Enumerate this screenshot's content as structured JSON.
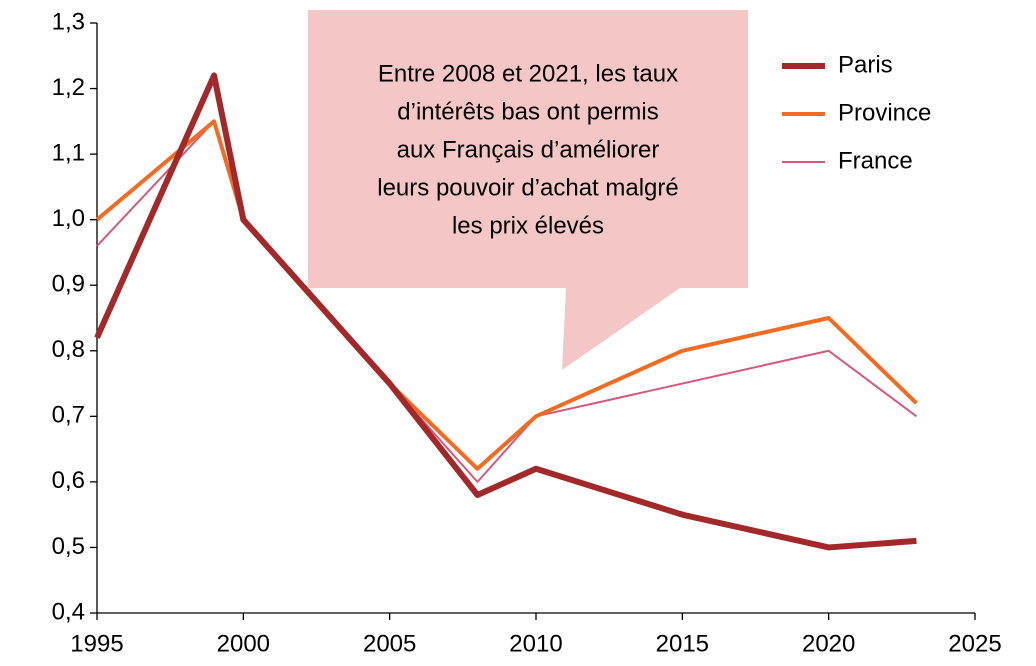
{
  "chart_data": {
    "type": "line",
    "x": [
      1995,
      1999,
      2000,
      2005,
      2008,
      2010,
      2015,
      2020,
      2023
    ],
    "series": [
      {
        "name": "Paris",
        "color": "#a3282a",
        "width": 6,
        "values": [
          0.82,
          1.22,
          1.0,
          0.75,
          0.58,
          0.62,
          0.55,
          0.5,
          0.51
        ]
      },
      {
        "name": "Province",
        "color": "#f26b21",
        "width": 4,
        "values": [
          1.0,
          1.15,
          1.0,
          0.75,
          0.62,
          0.7,
          0.8,
          0.85,
          0.72
        ]
      },
      {
        "name": "France",
        "color": "#d6587a",
        "width": 2,
        "values": [
          0.96,
          1.15,
          1.0,
          0.75,
          0.6,
          0.7,
          0.75,
          0.8,
          0.7
        ]
      }
    ],
    "xlim": [
      1995,
      2025
    ],
    "xticks": [
      1995,
      2000,
      2005,
      2010,
      2015,
      2020,
      2025
    ],
    "ylim": [
      0.4,
      1.3
    ],
    "yticks": [
      {
        "value": 0.4,
        "label": "0,4"
      },
      {
        "value": 0.5,
        "label": "0,5"
      },
      {
        "value": 0.6,
        "label": "0,6"
      },
      {
        "value": 0.7,
        "label": "0,7"
      },
      {
        "value": 0.8,
        "label": "0,8"
      },
      {
        "value": 0.9,
        "label": "0,9"
      },
      {
        "value": 1.0,
        "label": "1,0"
      },
      {
        "value": 1.1,
        "label": "1,1"
      },
      {
        "value": 1.2,
        "label": "1,2"
      },
      {
        "value": 1.3,
        "label": "1,3"
      }
    ],
    "grid": false,
    "legend": "upper right",
    "annotation": [
      "Entre 2008 et 2021, les taux",
      "d’intérêts bas ont permis",
      "aux Français d’améliorer",
      "leurs pouvoir d’achat malgré",
      "les prix élevés"
    ]
  }
}
